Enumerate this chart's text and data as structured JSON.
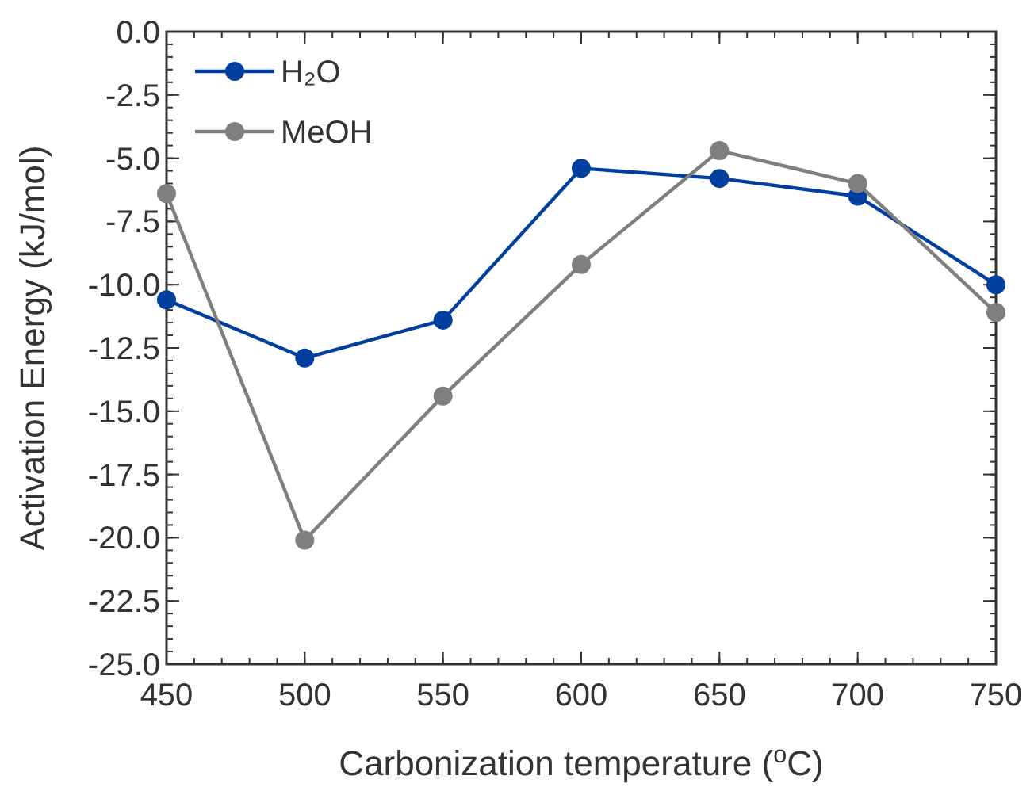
{
  "chart_data": {
    "type": "line",
    "xlabel": "Carbonization temperature ($^{o}$C)",
    "ylabel": "Activation Energy (kJ/mol)",
    "x": [
      450,
      500,
      550,
      600,
      650,
      700,
      750
    ],
    "series": [
      {
        "name": "H₂O",
        "color": "#003f9e",
        "values": [
          -10.6,
          -12.9,
          -11.4,
          -5.4,
          -5.8,
          -6.5,
          -10.0
        ]
      },
      {
        "name": "MeOH",
        "color": "#7f7f7f",
        "values": [
          -6.4,
          -20.1,
          -14.4,
          -9.2,
          -4.7,
          -6.0,
          -11.1
        ]
      }
    ],
    "xlim": [
      450,
      750
    ],
    "xticks": [
      450,
      500,
      550,
      600,
      650,
      700,
      750
    ],
    "ylim": [
      -25,
      0
    ],
    "yticks": [
      {
        "value": -25,
        "label": "-25.0"
      },
      {
        "value": -22.5,
        "label": "-22.5"
      },
      {
        "value": -20,
        "label": "-20.0"
      },
      {
        "value": -17.5,
        "label": "-17.5"
      },
      {
        "value": -15,
        "label": "-15.0"
      },
      {
        "value": -12.5,
        "label": "-12.5"
      },
      {
        "value": -10,
        "label": "-10.0"
      },
      {
        "value": -7.5,
        "label": "-7.5"
      },
      {
        "value": -5,
        "label": "-5.0"
      },
      {
        "value": -2.5,
        "label": "-2.5"
      },
      {
        "value": 0,
        "label": "0.0"
      }
    ],
    "grid": false,
    "legend": "top left",
    "marker": "circle",
    "line_style": "solid"
  }
}
